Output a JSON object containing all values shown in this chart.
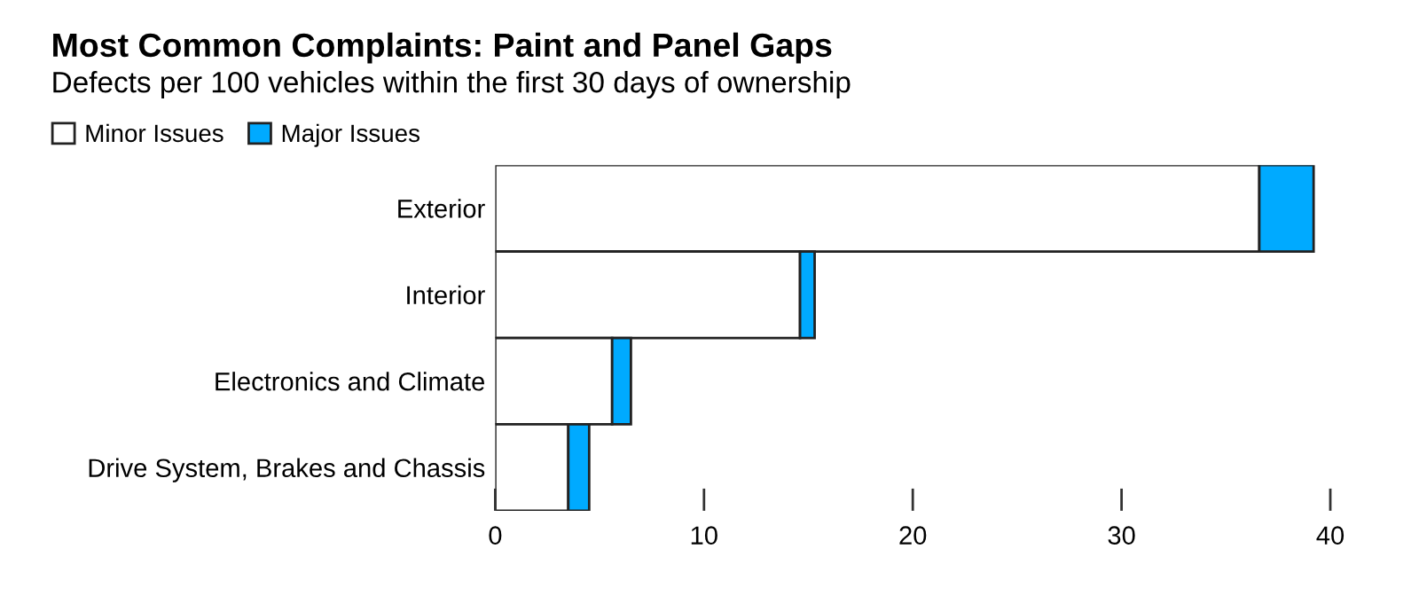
{
  "chart_data": {
    "type": "bar",
    "orientation": "horizontal",
    "stacked": true,
    "title": "Most Common Complaints: Paint and Panel Gaps",
    "subtitle": "Defects per 100 vehicles within the first 30 days of ownership",
    "categories": [
      "Exterior",
      "Interior",
      "Electronics and Climate",
      "Drive System, Brakes and Chassis"
    ],
    "series": [
      {
        "name": "Minor Issues",
        "color": "#ffffff",
        "values": [
          36.6,
          14.6,
          5.6,
          3.5
        ]
      },
      {
        "name": "Major Issues",
        "color": "#00aaff",
        "values": [
          2.6,
          0.7,
          0.9,
          1.0
        ]
      }
    ],
    "xlim": [
      0,
      40
    ],
    "xticks": [
      0,
      10,
      20,
      30,
      40
    ],
    "grid": false,
    "legend": "top left"
  }
}
